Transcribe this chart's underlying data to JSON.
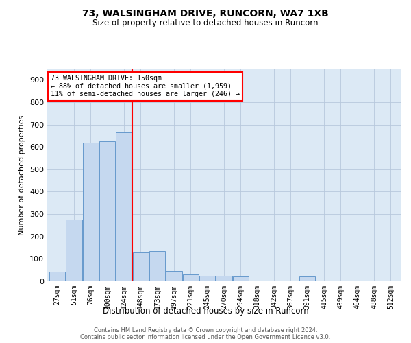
{
  "title1": "73, WALSINGHAM DRIVE, RUNCORN, WA7 1XB",
  "title2": "Size of property relative to detached houses in Runcorn",
  "xlabel": "Distribution of detached houses by size in Runcorn",
  "ylabel": "Number of detached properties",
  "categories": [
    "27sqm",
    "51sqm",
    "76sqm",
    "100sqm",
    "124sqm",
    "148sqm",
    "173sqm",
    "197sqm",
    "221sqm",
    "245sqm",
    "270sqm",
    "294sqm",
    "318sqm",
    "342sqm",
    "367sqm",
    "391sqm",
    "415sqm",
    "439sqm",
    "464sqm",
    "488sqm",
    "512sqm"
  ],
  "values": [
    42,
    275,
    620,
    625,
    665,
    130,
    135,
    45,
    30,
    25,
    25,
    20,
    0,
    0,
    0,
    20,
    0,
    0,
    0,
    0,
    0
  ],
  "bar_color": "#c5d8ef",
  "bar_edgecolor": "#6699cc",
  "redline_x": 4.5,
  "annotation_text": "73 WALSINGHAM DRIVE: 150sqm\n← 88% of detached houses are smaller (1,959)\n11% of semi-detached houses are larger (246) →",
  "ylim": [
    0,
    950
  ],
  "yticks": [
    0,
    100,
    200,
    300,
    400,
    500,
    600,
    700,
    800,
    900
  ],
  "bg_color": "#dce9f5",
  "grid_color": "#b8c8dc",
  "footer1": "Contains HM Land Registry data © Crown copyright and database right 2024.",
  "footer2": "Contains public sector information licensed under the Open Government Licence v3.0."
}
